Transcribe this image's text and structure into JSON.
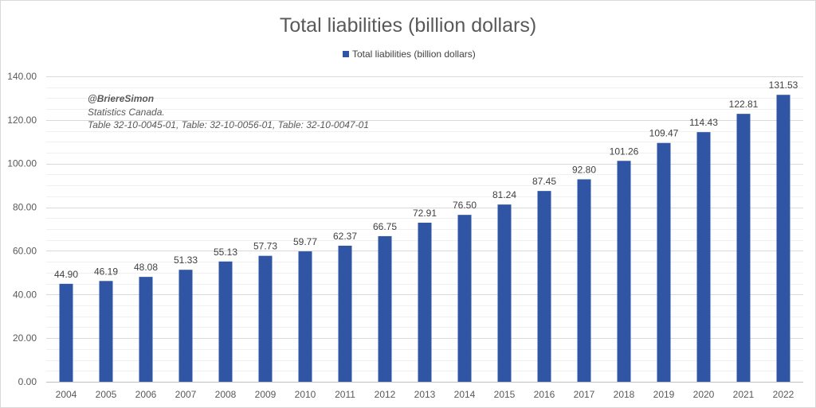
{
  "chart_data": {
    "type": "bar",
    "title": "Total liabilities (billion dollars)",
    "categories": [
      "2004",
      "2005",
      "2006",
      "2007",
      "2008",
      "2009",
      "2010",
      "2011",
      "2012",
      "2013",
      "2014",
      "2015",
      "2016",
      "2017",
      "2018",
      "2019",
      "2020",
      "2021",
      "2022"
    ],
    "series": [
      {
        "name": "Total liabilities (billion dollars)",
        "values": [
          44.9,
          46.19,
          48.08,
          51.33,
          55.13,
          57.73,
          59.77,
          62.37,
          66.75,
          72.91,
          76.5,
          81.24,
          87.45,
          92.8,
          101.26,
          109.47,
          114.43,
          122.81,
          131.53
        ],
        "labels": [
          "44.90",
          "46.19",
          "48.08",
          "51.33",
          "55.13",
          "57.73",
          "59.77",
          "62.37",
          "66.75",
          "72.91",
          "76.50",
          "81.24",
          "87.45",
          "92.80",
          "101.26",
          "109.47",
          "114.43",
          "122.81",
          "131.53"
        ],
        "color": "#2F55A4"
      }
    ],
    "ylim": [
      0,
      140
    ],
    "yticks": [
      "0.00",
      "20.00",
      "40.00",
      "60.00",
      "80.00",
      "100.00",
      "120.00",
      "140.00"
    ],
    "ytick_values": [
      0,
      20,
      40,
      60,
      80,
      100,
      120,
      140
    ],
    "minor_grid_step": 5,
    "grid": true,
    "legend_position": "top",
    "xlabel": "",
    "ylabel": ""
  },
  "annotation": {
    "author": "@BriereSimon",
    "source_line1": "Statistics Canada.",
    "source_line2": "Table 32-10-0045-01, Table: 32-10-0056-01, Table: 32-10-0047-01"
  }
}
